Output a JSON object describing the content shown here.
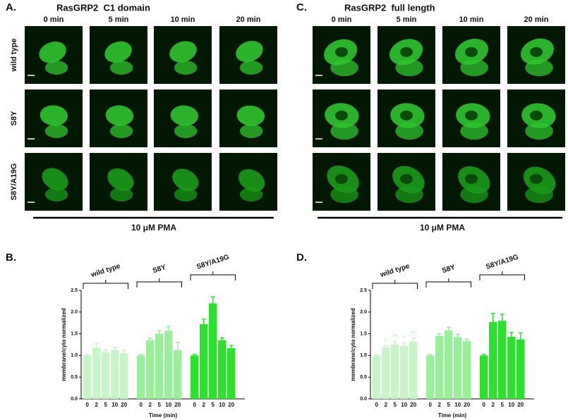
{
  "panels": [
    {
      "label": "A.",
      "title": "RasGRP2  C1 domain",
      "columns": [
        "0 min",
        "5 min",
        "10 min",
        "20 min"
      ],
      "rows": [
        "wild type",
        "S8Y",
        "S8Y/A19G"
      ],
      "treatment": "10 μM PMA"
    },
    {
      "label": "C.",
      "title": "RasGRP2  full length",
      "columns": [
        "0 min",
        "5 min",
        "10 min",
        "20 min"
      ],
      "rows": [
        "wild type",
        "S8Y",
        "S8Y/A19G"
      ],
      "treatment": "10 μM PMA"
    }
  ],
  "chart_data": [
    {
      "type": "bar",
      "label": "B.",
      "y_label": "membrane/cyto normalized",
      "x_label": "Time (min)",
      "categories": [
        "0",
        "2",
        "5",
        "10",
        "20"
      ],
      "ylim": [
        0,
        2.5
      ],
      "yticks": [
        {
          "value": 0,
          "label": "0.0"
        },
        {
          "value": 0.5,
          "label": "0.5"
        },
        {
          "value": 1,
          "label": "1.0"
        },
        {
          "value": 1.5,
          "label": "1.5"
        },
        {
          "value": 2,
          "label": "2.0"
        },
        {
          "value": 2.5,
          "label": "2.5"
        }
      ],
      "series": [
        {
          "name": "wild type",
          "color": "#c8f5c8",
          "values": [
            1.0,
            1.18,
            1.07,
            1.12,
            1.05
          ],
          "errors": [
            0.03,
            0.1,
            0.05,
            0.07,
            0.07
          ]
        },
        {
          "name": "S8Y",
          "color": "#9bee9b",
          "values": [
            1.0,
            1.35,
            1.5,
            1.57,
            1.12
          ],
          "errors": [
            0.02,
            0.05,
            0.07,
            0.1,
            0.18
          ]
        },
        {
          "name": "S8Y/A19G",
          "color": "#2ee02e",
          "values": [
            1.0,
            1.72,
            2.2,
            1.35,
            1.17
          ],
          "errors": [
            0.02,
            0.12,
            0.15,
            0.05,
            0.06
          ]
        }
      ]
    },
    {
      "type": "bar",
      "label": "D.",
      "y_label": "membrane/cyto normalized",
      "x_label": "Time (min)",
      "categories": [
        "0",
        "2",
        "5",
        "10",
        "20"
      ],
      "ylim": [
        0,
        2.5
      ],
      "yticks": [
        {
          "value": 0,
          "label": "0.0"
        },
        {
          "value": 0.5,
          "label": "0.5"
        },
        {
          "value": 1,
          "label": "1.0"
        },
        {
          "value": 1.5,
          "label": "1.5"
        },
        {
          "value": 2,
          "label": "2.0"
        },
        {
          "value": 2.5,
          "label": "2.5"
        }
      ],
      "series": [
        {
          "name": "wild type",
          "color": "#c8f5c8",
          "values": [
            1.0,
            1.18,
            1.25,
            1.22,
            1.32
          ],
          "errors": [
            0.02,
            0.05,
            0.07,
            0.07,
            0.08
          ],
          "significance": [
            null,
            "*",
            "**",
            "*",
            "**"
          ]
        },
        {
          "name": "S8Y",
          "color": "#9bee9b",
          "values": [
            1.0,
            1.45,
            1.58,
            1.42,
            1.33
          ],
          "errors": [
            0.02,
            0.05,
            0.07,
            0.07,
            0.05
          ]
        },
        {
          "name": "S8Y/A19G",
          "color": "#2ee02e",
          "values": [
            1.0,
            1.77,
            1.8,
            1.43,
            1.37
          ],
          "errors": [
            0.02,
            0.2,
            0.15,
            0.1,
            0.15
          ]
        }
      ]
    }
  ]
}
